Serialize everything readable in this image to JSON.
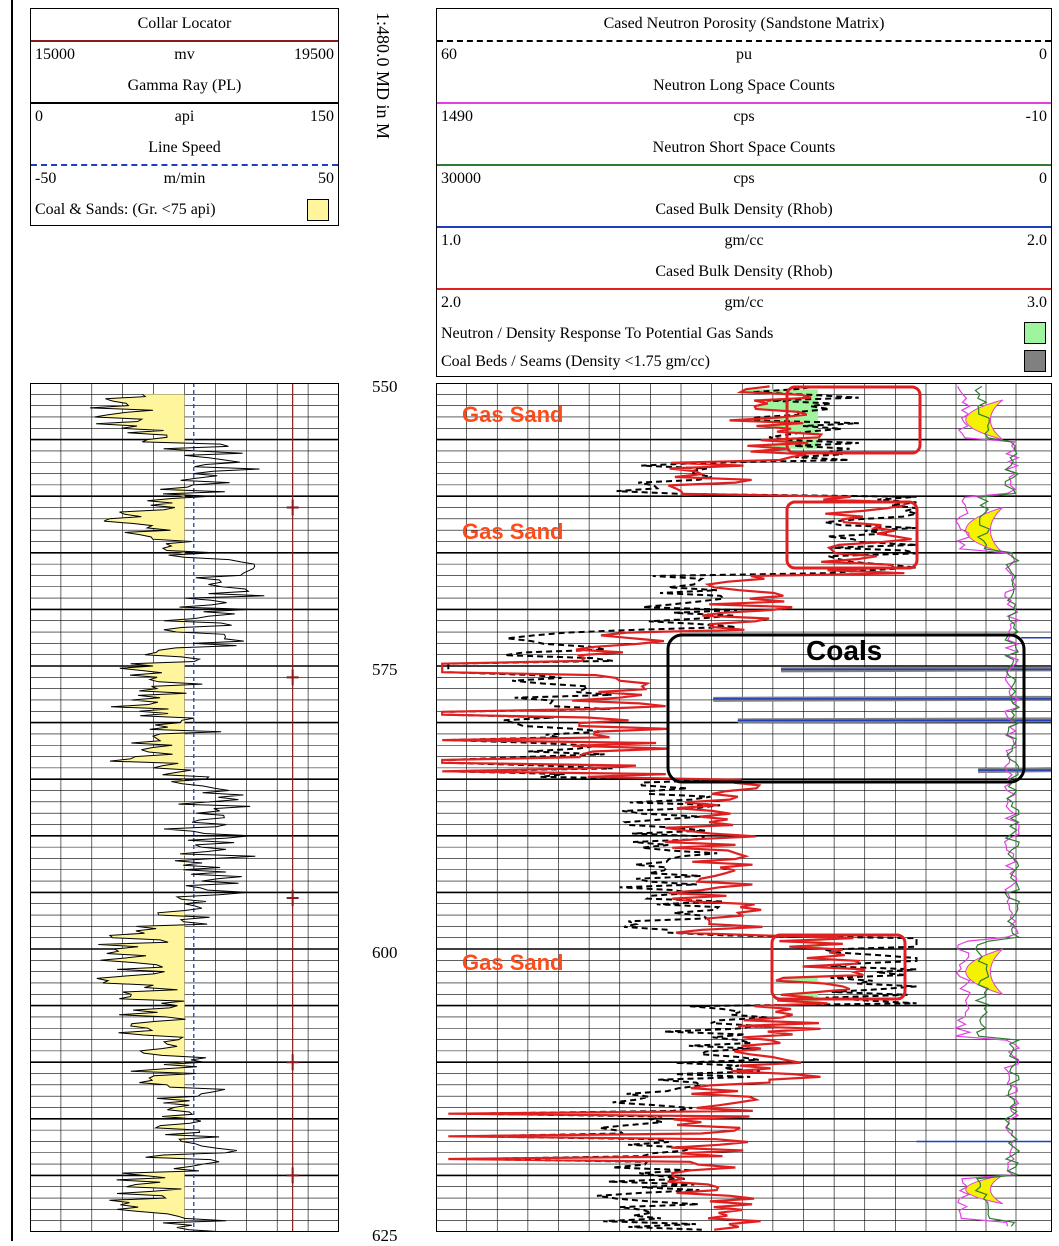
{
  "left_header": {
    "curves": [
      {
        "name": "Collar Locator",
        "unit": "mv",
        "min": "15000",
        "max": "19500",
        "color": "#8b1a1a",
        "dash": ""
      },
      {
        "name": "Gamma Ray (PL)",
        "unit": "api",
        "min": "0",
        "max": "150",
        "color": "#000000",
        "dash": ""
      },
      {
        "name": "Line Speed",
        "unit": "m/min",
        "min": "-50",
        "max": "50",
        "color": "#1f3fbf",
        "dash": "5,4"
      }
    ],
    "legend": {
      "label": "Coal & Sands:  (Gr. <75 api)",
      "color": "#fff59d"
    }
  },
  "scale_caption": "1:480.0 MD in M",
  "right_header": {
    "curves": [
      {
        "name": "Cased Neutron Porosity (Sandstone Matrix)",
        "unit": "pu",
        "min": "60",
        "max": "0",
        "color": "#000000",
        "dash": "7,5"
      },
      {
        "name": "Neutron Long Space Counts",
        "unit": "cps",
        "min": "1490",
        "max": "-10",
        "color": "#e040e0",
        "dash": ""
      },
      {
        "name": "Neutron Short Space Counts",
        "unit": "cps",
        "min": "30000",
        "max": "0",
        "color": "#2e7d32",
        "dash": ""
      },
      {
        "name": "Cased Bulk Density (Rhob)",
        "unit": "gm/cc",
        "min": "1.0",
        "max": "2.0",
        "color": "#1f3fbf",
        "dash": ""
      },
      {
        "name": "Cased Bulk Density (Rhob)",
        "unit": "gm/cc",
        "min": "2.0",
        "max": "3.0",
        "color": "#e02020",
        "dash": ""
      }
    ],
    "legends": [
      {
        "label": "Neutron / Density Response To Potential Gas Sands",
        "color": "#9ef59e"
      },
      {
        "label": "Coal Beds / Seams  (Density <1.75 gm/cc)",
        "color": "#808080"
      }
    ]
  },
  "depth_labels": [
    "550",
    "575",
    "600",
    "625"
  ],
  "annotations": {
    "gas_sand_1": "Gas Sand",
    "gas_sand_2": "Gas Sand",
    "gas_sand_3": "Gas Sand",
    "coals": "Coals"
  },
  "chart_data": {
    "type": "line",
    "depth_range_m": [
      550,
      625
    ],
    "depth_tick_labels": [
      550,
      575,
      600,
      625
    ],
    "gas_sand_zones_m": [
      [
        550.5,
        556
      ],
      [
        560.5,
        566.5
      ],
      [
        599,
        605
      ]
    ],
    "coal_zone_m": [
      572,
      585
    ],
    "series": [
      {
        "name": "Gamma Ray (PL)",
        "unit": "api",
        "range": [
          0,
          150
        ],
        "depth": [
          551,
          553,
          555,
          557,
          559,
          561,
          563,
          565,
          567,
          569,
          571,
          573,
          575,
          577,
          579,
          581,
          583,
          585,
          587,
          589,
          591,
          593,
          595,
          597,
          599,
          601,
          603,
          605,
          607,
          609,
          611,
          613,
          615,
          617,
          619,
          621,
          623,
          625
        ],
        "values": [
          55,
          40,
          70,
          95,
          85,
          60,
          50,
          80,
          100,
          95,
          80,
          90,
          60,
          75,
          55,
          80,
          50,
          70,
          90,
          80,
          95,
          85,
          90,
          80,
          55,
          45,
          50,
          60,
          55,
          70,
          65,
          80,
          75,
          90,
          70,
          55,
          60,
          95
        ]
      },
      {
        "name": "Collar Locator",
        "unit": "mv",
        "range": [
          15000,
          19500
        ],
        "collar_depths": [
          561,
          576,
          595.5,
          610,
          620
        ]
      },
      {
        "name": "Line Speed",
        "unit": "m/min",
        "range": [
          -50,
          50
        ],
        "depth": [
          550,
          625
        ],
        "values": [
          3,
          3
        ]
      }
    ]
  }
}
